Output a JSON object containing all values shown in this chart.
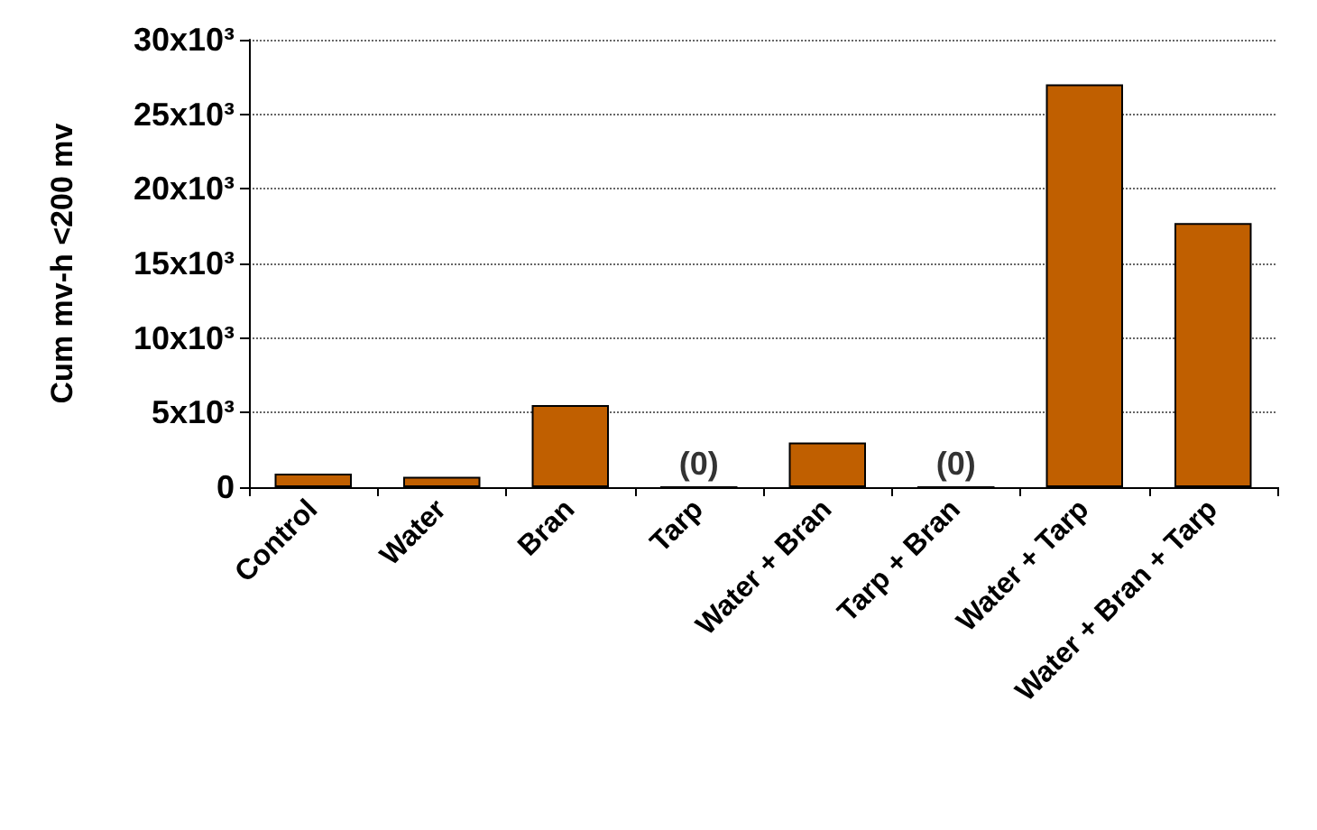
{
  "chart_data": {
    "type": "bar",
    "ylabel": "Cum mv-h <200 mv",
    "categories": [
      "Control",
      "Water",
      "Bran",
      "Tarp",
      "Water + Bran",
      "Tarp + Bran",
      "Water + Tarp",
      "Water + Bran + Tarp"
    ],
    "values": [
      900,
      700,
      5500,
      0,
      3000,
      0,
      27000,
      17700
    ],
    "color": "#c05f00",
    "ylim": [
      0,
      30000
    ],
    "yticks": [
      {
        "value": 0,
        "label": "0"
      },
      {
        "value": 5000,
        "label": "5x10³"
      },
      {
        "value": 10000,
        "label": "10x10³"
      },
      {
        "value": 15000,
        "label": "15x10³"
      },
      {
        "value": 20000,
        "label": "20x10³"
      },
      {
        "value": 25000,
        "label": "25x10³"
      },
      {
        "value": 30000,
        "label": "30x10³"
      }
    ],
    "annotations": [
      {
        "text": "(0)",
        "x": "Tarp",
        "y": 0
      },
      {
        "text": "(0)",
        "x": "Tarp + Bran",
        "y": 0
      }
    ],
    "grid": "y"
  }
}
